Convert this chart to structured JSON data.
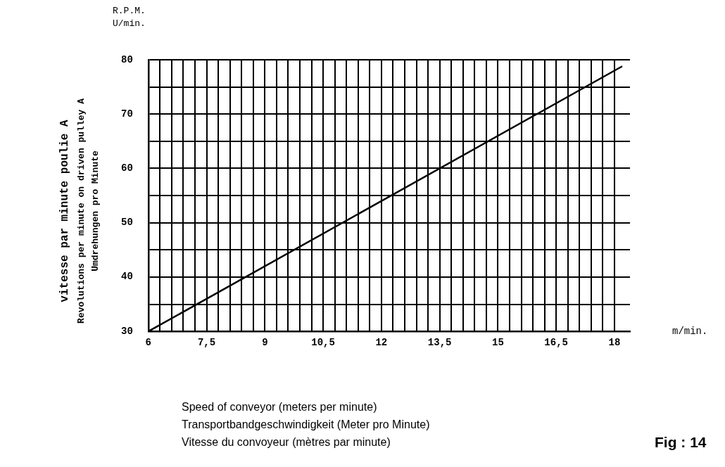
{
  "chart_data": {
    "type": "line",
    "xlabel": "Speed of conveyor (meters per minute)\nTransportbandgeschwindigkeit (Meter pro Minute)\nVitesse du convoyeur (mètres par minute)",
    "ylabel": "vitesse par minute poulie A\nRevolutions per minute on driven pulley A\nUmdrehungen pro Minute",
    "annotations": [
      "R.P.M.\nU/min.",
      "m/min.",
      "Fig : 14"
    ],
    "series": [
      {
        "color": "#000000",
        "x": [
          6,
          18.2
        ],
        "values": [
          30,
          78.8
        ]
      }
    ],
    "xlim": [
      6,
      18.4
    ],
    "xticks": [
      6,
      {
        "value": 6.3,
        "label": null
      },
      {
        "value": 6.6,
        "label": null
      },
      {
        "value": 6.9,
        "label": null
      },
      {
        "value": 7.2,
        "label": null
      },
      {
        "value": 7.5,
        "label": "7,5"
      },
      {
        "value": 7.8,
        "label": null
      },
      {
        "value": 8.1,
        "label": null
      },
      {
        "value": 8.4,
        "label": null
      },
      {
        "value": 8.7,
        "label": null
      },
      9,
      {
        "value": 9.3,
        "label": null
      },
      {
        "value": 9.6,
        "label": null
      },
      {
        "value": 9.9,
        "label": null
      },
      {
        "value": 10.2,
        "label": null
      },
      {
        "value": 10.5,
        "label": "10,5"
      },
      {
        "value": 10.8,
        "label": null
      },
      {
        "value": 11.1,
        "label": null
      },
      {
        "value": 11.4,
        "label": null
      },
      {
        "value": 11.7,
        "label": null
      },
      12,
      {
        "value": 12.3,
        "label": null
      },
      {
        "value": 12.6,
        "label": null
      },
      {
        "value": 12.9,
        "label": null
      },
      {
        "value": 13.2,
        "label": null
      },
      {
        "value": 13.5,
        "label": "13,5"
      },
      {
        "value": 13.8,
        "label": null
      },
      {
        "value": 14.1,
        "label": null
      },
      {
        "value": 14.4,
        "label": null
      },
      {
        "value": 14.7,
        "label": null
      },
      15,
      {
        "value": 15.3,
        "label": null
      },
      {
        "value": 15.6,
        "label": null
      },
      {
        "value": 15.9,
        "label": null
      },
      {
        "value": 16.2,
        "label": null
      },
      {
        "value": 16.5,
        "label": "16,5"
      },
      {
        "value": 16.8,
        "label": null
      },
      {
        "value": 17.1,
        "label": null
      },
      {
        "value": 17.4,
        "label": null
      },
      {
        "value": 17.7,
        "label": null
      },
      18
    ],
    "ylim": [
      30,
      80
    ],
    "yticks": [
      30,
      {
        "value": 35,
        "label": null
      },
      40,
      {
        "value": 45,
        "label": null
      },
      50,
      {
        "value": 55,
        "label": null
      },
      60,
      {
        "value": 65,
        "label": null
      },
      70,
      {
        "value": 75,
        "label": null
      },
      80
    ],
    "grid": true,
    "marker": "none",
    "line_style": "solid"
  }
}
